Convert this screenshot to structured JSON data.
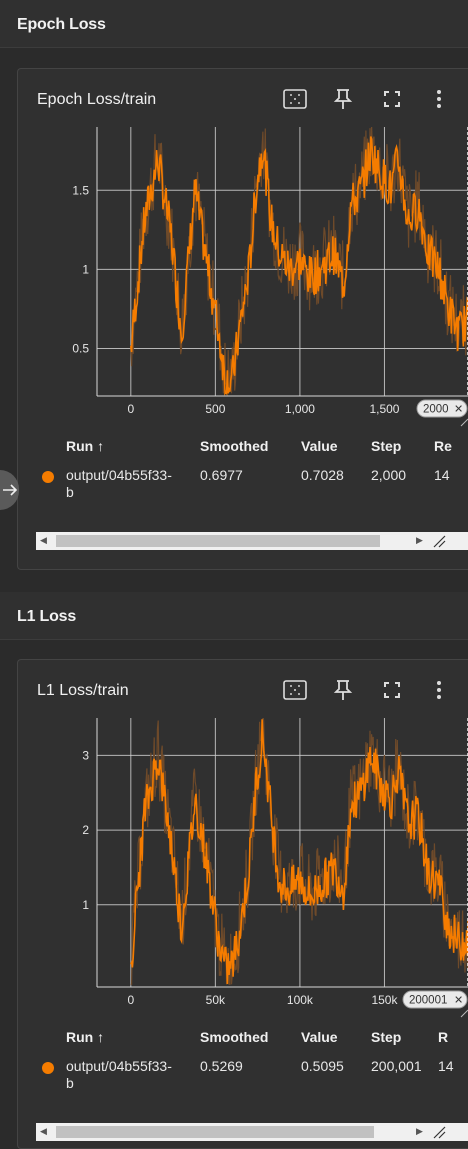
{
  "sections": [
    {
      "header": "Epoch Loss",
      "card_title": "Epoch Loss/train",
      "chip_label": "2000",
      "table": {
        "headers": {
          "run": "Run ↑",
          "smoothed": "Smoothed",
          "value": "Value",
          "step": "Step",
          "relative": "Re"
        },
        "row": {
          "run_line1": "output/04b55f33-",
          "run_line2": "b",
          "smoothed": "0.6977",
          "value": "0.7028",
          "step": "2,000",
          "relative": "14"
        }
      }
    },
    {
      "header": "L1 Loss",
      "card_title": "L1 Loss/train",
      "chip_label": "200001",
      "table": {
        "headers": {
          "run": "Run ↑",
          "smoothed": "Smoothed",
          "value": "Value",
          "step": "Step",
          "relative": "R"
        },
        "row": {
          "run_line1": "output/04b55f33-",
          "run_line2": "b",
          "smoothed": "0.5269",
          "value": "0.5095",
          "step": "200,001",
          "relative": "14"
        }
      }
    }
  ],
  "colors": {
    "series": "#f57c00",
    "raw_series": "#6e4a2a",
    "background": "#2b2b2b",
    "card": "#303030"
  },
  "icons": [
    "fit-domain-icon",
    "pin-icon",
    "fullscreen-icon",
    "more-vert-icon",
    "close-icon",
    "arrow-right-icon",
    "resize-grip-icon"
  ],
  "chart_data": [
    {
      "type": "line",
      "title": "Epoch Loss/train",
      "xlim": [
        -200,
        2000
      ],
      "ylim": [
        0.2,
        1.9
      ],
      "x_ticks": [
        0,
        500,
        1000,
        1500
      ],
      "x_tick_labels": [
        "0",
        "500",
        "1,000",
        "1,500"
      ],
      "y_ticks": [
        0.5,
        1,
        1.5
      ],
      "y_tick_labels": [
        "0.5",
        "1",
        "1.5"
      ],
      "grid": true,
      "series": [
        {
          "x": [
            0,
            80,
            160,
            240,
            300,
            380,
            440,
            520,
            560,
            600,
            640,
            700,
            740,
            780,
            830,
            880,
            940,
            1000,
            1060,
            1120,
            1200,
            1260,
            1300,
            1360,
            1420,
            1480,
            1540,
            1580,
            1640,
            1700,
            1760,
            1820,
            1880,
            1940,
            2000
          ],
          "y": [
            0.5,
            1.3,
            1.7,
            1.2,
            0.6,
            1.5,
            1.1,
            0.6,
            0.3,
            0.3,
            0.6,
            1.0,
            1.5,
            1.8,
            1.3,
            1.1,
            1.0,
            1.05,
            0.95,
            1.0,
            1.1,
            0.9,
            1.4,
            1.5,
            1.75,
            1.6,
            1.5,
            1.7,
            1.3,
            1.4,
            1.1,
            1.0,
            0.75,
            0.6,
            0.7
          ]
        }
      ]
    },
    {
      "type": "line",
      "title": "L1 Loss/train",
      "xlim": [
        -20000,
        200001
      ],
      "ylim": [
        -0.1,
        3.5
      ],
      "x_ticks": [
        0,
        50000,
        100000,
        150000
      ],
      "x_tick_labels": [
        "0",
        "50k",
        "100k",
        "150k"
      ],
      "y_ticks": [
        1,
        2,
        3
      ],
      "y_tick_labels": [
        "1",
        "2",
        "3"
      ],
      "grid": true,
      "series": [
        {
          "x": [
            0,
            8000,
            16000,
            24000,
            30000,
            38000,
            44000,
            52000,
            56000,
            60000,
            64000,
            70000,
            74000,
            78000,
            83000,
            88000,
            94000,
            100000,
            106000,
            112000,
            120000,
            126000,
            130000,
            136000,
            142000,
            148000,
            154000,
            158000,
            164000,
            170000,
            176000,
            182000,
            188000,
            194000,
            200001
          ],
          "y": [
            0.2,
            2.2,
            3.0,
            1.8,
            0.7,
            2.4,
            1.7,
            0.5,
            0.15,
            0.2,
            0.6,
            1.5,
            2.6,
            3.3,
            2.2,
            1.3,
            1.2,
            1.35,
            1.1,
            1.25,
            1.5,
            1.2,
            2.3,
            2.5,
            3.0,
            2.6,
            2.4,
            2.8,
            2.1,
            2.2,
            1.4,
            1.3,
            0.7,
            0.5,
            0.55
          ]
        }
      ]
    }
  ]
}
